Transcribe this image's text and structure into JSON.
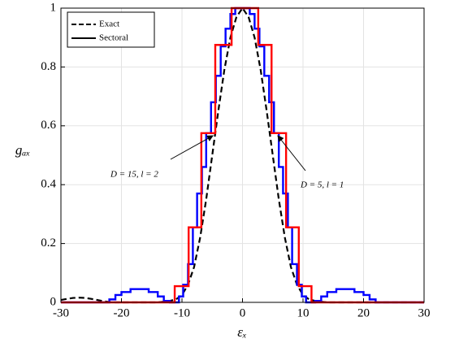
{
  "chart_data": {
    "type": "line",
    "xlabel": "εₓ",
    "ylabel": "gₐₓ",
    "xlim": [
      -30,
      30
    ],
    "ylim": [
      0,
      1
    ],
    "xticks": [
      -30,
      -20,
      -10,
      0,
      10,
      20,
      30
    ],
    "yticks": [
      0,
      0.2,
      0.4,
      0.6,
      0.8,
      1
    ],
    "grid": true,
    "legend": {
      "location": "upper left",
      "entries": [
        "Exact",
        "Sectoral"
      ]
    },
    "series": [
      {
        "name": "Exact",
        "color": "#000000",
        "dash": true,
        "step": false,
        "x": [
          -30,
          -29,
          -28,
          -27,
          -26,
          -25,
          -24,
          -23,
          -22,
          -21,
          -20,
          -19,
          -18,
          -17,
          -16,
          -15,
          -14,
          -13,
          -12,
          -11,
          -10,
          -9,
          -8,
          -7,
          -6,
          -5,
          -4,
          -3,
          -2,
          -1,
          0,
          1,
          2,
          3,
          4,
          5,
          6,
          7,
          8,
          9,
          10,
          11,
          12,
          13,
          14,
          15,
          16,
          17,
          18,
          19,
          20,
          21,
          22,
          23,
          24,
          25,
          26,
          27,
          28,
          29,
          30
        ],
        "values": [
          0.008,
          0.012,
          0.015,
          0.016,
          0.015,
          0.012,
          0.008,
          0.004,
          0.001,
          0,
          0,
          0,
          0,
          0,
          0,
          0,
          0,
          0.002,
          0.005,
          0.01,
          0.025,
          0.06,
          0.12,
          0.22,
          0.35,
          0.5,
          0.65,
          0.79,
          0.9,
          0.97,
          1,
          0.97,
          0.9,
          0.79,
          0.65,
          0.5,
          0.35,
          0.22,
          0.12,
          0.06,
          0.025,
          0.01,
          0.005,
          0.002,
          0,
          0,
          0,
          0,
          0,
          0,
          0,
          0,
          0,
          0,
          0,
          0,
          0,
          0,
          0,
          0,
          0
        ]
      },
      {
        "name": "D = 15, l = 2",
        "color": "#0000ff",
        "dash": false,
        "step": true,
        "x": [
          -30,
          -22,
          -21,
          -20,
          -18.5,
          -15.5,
          -14,
          -13,
          -12,
          -10.5,
          -9.8,
          -9,
          -8.2,
          -7.5,
          -6.7,
          -6,
          -5.2,
          -4.4,
          -3.6,
          -2.8,
          -2,
          -1.2,
          1.2,
          2,
          2.8,
          3.6,
          4.4,
          5.2,
          6,
          6.7,
          7.5,
          8.2,
          9,
          9.8,
          10.5,
          12,
          13,
          14,
          15.5,
          18.5,
          20,
          21,
          22,
          30
        ],
        "values": [
          0,
          0.01,
          0.025,
          0.035,
          0.045,
          0.035,
          0.02,
          0.005,
          0,
          0.02,
          0.06,
          0.13,
          0.255,
          0.37,
          0.46,
          0.575,
          0.68,
          0.77,
          0.87,
          0.93,
          0.98,
          1,
          0.98,
          0.93,
          0.87,
          0.77,
          0.68,
          0.575,
          0.46,
          0.37,
          0.255,
          0.13,
          0.06,
          0.02,
          0,
          0.005,
          0.02,
          0.035,
          0.045,
          0.035,
          0.025,
          0.01,
          0,
          0
        ]
      },
      {
        "name": "D = 5, l = 1",
        "color": "#ff0000",
        "dash": false,
        "step": true,
        "x": [
          -30,
          -11.2,
          -8.9,
          -6.8,
          -4.5,
          -1.8,
          2.6,
          4.8,
          7.2,
          9.3,
          11.4,
          30
        ],
        "values": [
          0,
          0.055,
          0.255,
          0.575,
          0.875,
          1,
          0.875,
          0.575,
          0.255,
          0.055,
          0,
          0
        ]
      }
    ]
  }
}
